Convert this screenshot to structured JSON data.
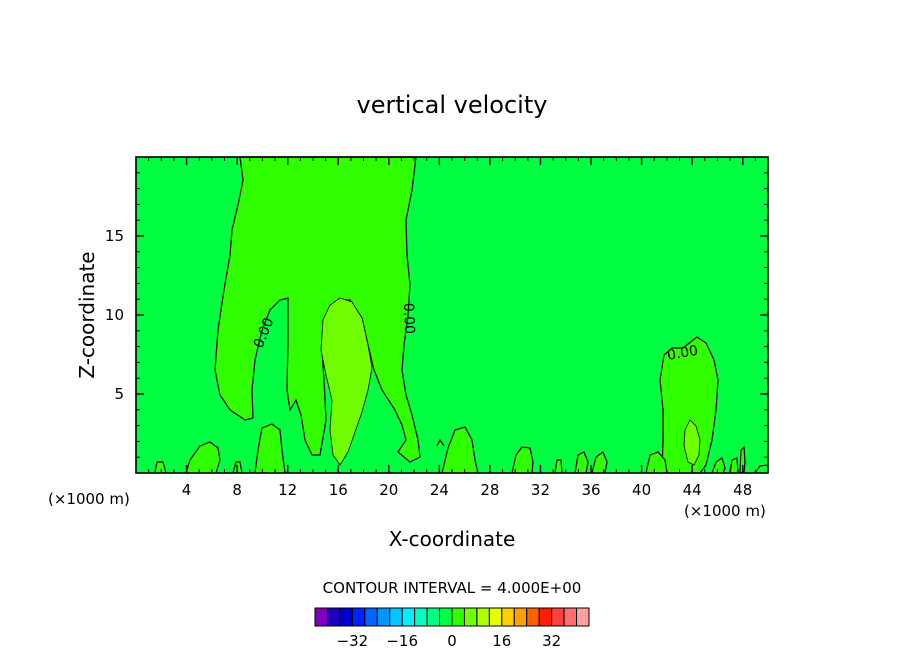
{
  "chart_data": {
    "type": "contour",
    "title": "vertical velocity",
    "xlabel": "X-coordinate",
    "ylabel": "Z-coordinate",
    "x_unit_left": "(×1000 m)",
    "x_unit_right": "(×1000 m)",
    "xlim": [
      0,
      50
    ],
    "ylim": [
      0,
      20
    ],
    "xticks": [
      4,
      8,
      12,
      16,
      20,
      24,
      28,
      32,
      36,
      40,
      44,
      48
    ],
    "yticks": [
      5,
      10,
      15
    ],
    "contour_labels": [
      "0.00",
      "0.00",
      "0.00"
    ],
    "contour_interval_text": "CONTOUR INTERVAL = 4.000E+00",
    "colorbar": {
      "colors": [
        "#7f00bf",
        "#1f00bf",
        "#0000d6",
        "#0022ff",
        "#0064ff",
        "#0096ff",
        "#00c8ff",
        "#00f0ff",
        "#00ffc0",
        "#00ff80",
        "#00ff40",
        "#30ff00",
        "#70ff00",
        "#b0ff00",
        "#e6ff00",
        "#ffd000",
        "#ff9f00",
        "#ff6000",
        "#ff1f00",
        "#ff4040",
        "#ff7070",
        "#ff9f9f"
      ],
      "tick_labels": [
        "-32",
        "-16",
        "0",
        "16",
        "32"
      ],
      "tick_values": [
        -32,
        -16,
        0,
        16,
        32
      ],
      "min": -44,
      "max": 44
    },
    "background_color": "#00ff40",
    "level1_color": "#30ff00",
    "level2_color": "#70ff00"
  }
}
